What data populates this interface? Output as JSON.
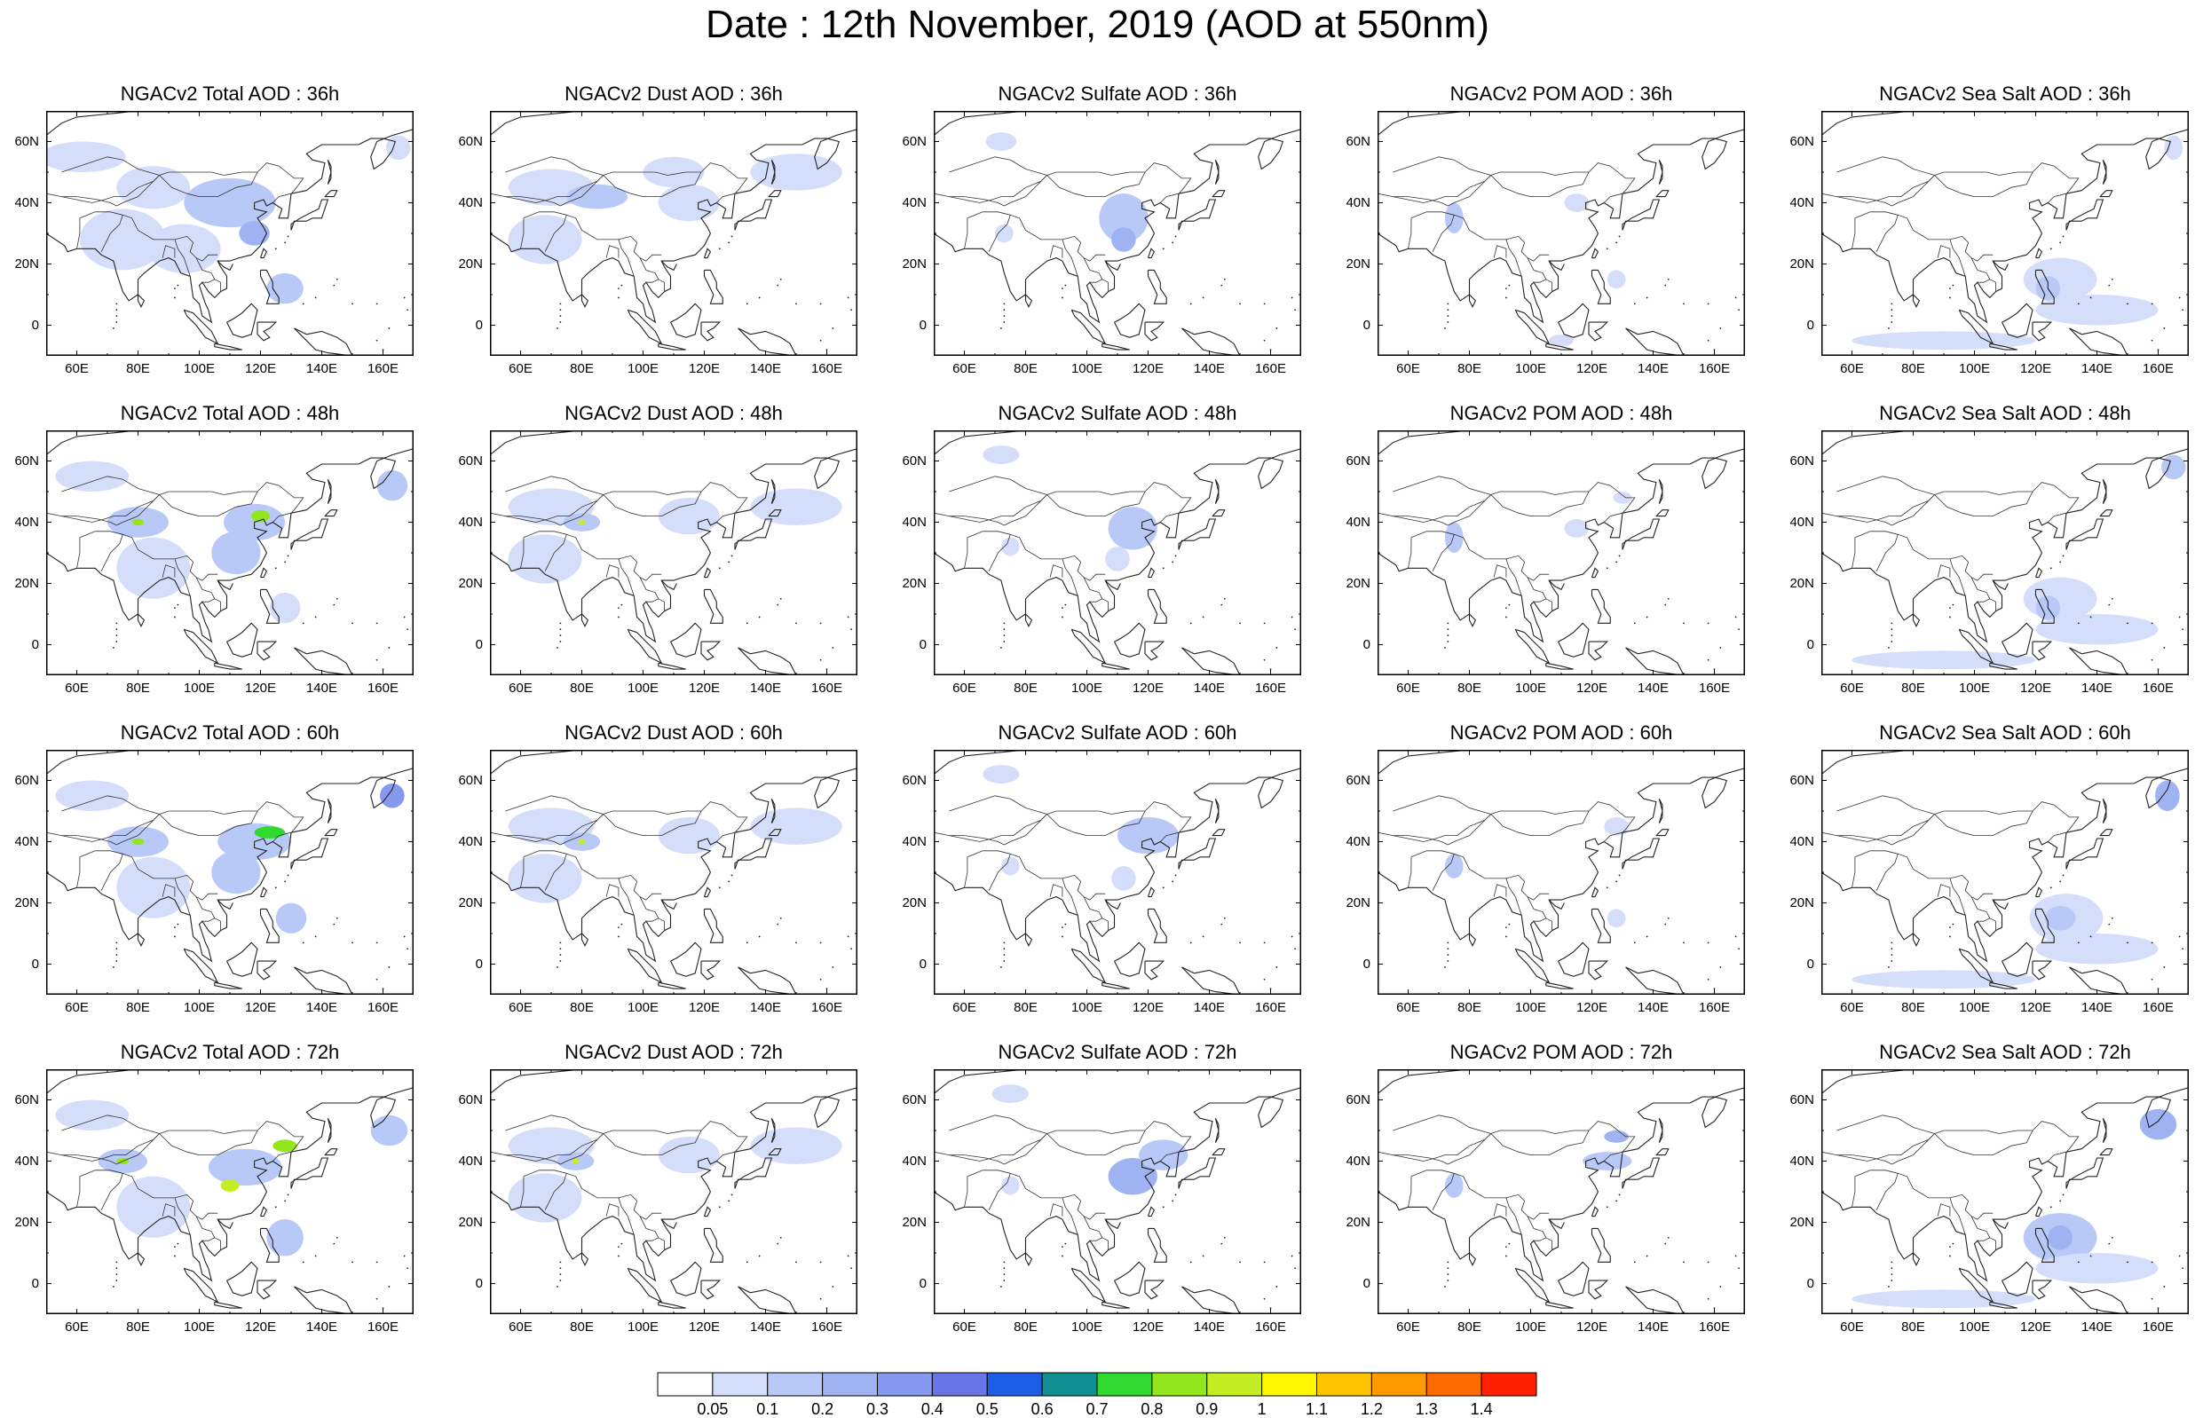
{
  "title": "Date : 12th November, 2019 (AOD at 550nm)",
  "panel_titles": [
    [
      "NGACv2 Total AOD : 36h",
      "NGACv2 Dust AOD : 36h",
      "NGACv2 Sulfate AOD : 36h",
      "NGACv2 POM AOD : 36h",
      "NGACv2 Sea Salt AOD : 36h"
    ],
    [
      "NGACv2 Total AOD : 48h",
      "NGACv2 Dust AOD : 48h",
      "NGACv2 Sulfate AOD : 48h",
      "NGACv2 POM AOD : 48h",
      "NGACv2 Sea Salt AOD : 48h"
    ],
    [
      "NGACv2 Total AOD : 60h",
      "NGACv2 Dust AOD : 60h",
      "NGACv2 Sulfate AOD : 60h",
      "NGACv2 POM AOD : 60h",
      "NGACv2 Sea Salt AOD : 60h"
    ],
    [
      "NGACv2 Total AOD : 72h",
      "NGACv2 Dust AOD : 72h",
      "NGACv2 Sulfate AOD : 72h",
      "NGACv2 POM AOD : 72h",
      "NGACv2 Sea Salt  AOD : 72h"
    ]
  ],
  "map_extent": {
    "lon": [
      50,
      170
    ],
    "lat": [
      -10,
      70
    ]
  },
  "lon_ticks": [
    "60E",
    "80E",
    "100E",
    "120E",
    "140E",
    "160E"
  ],
  "lon_values": [
    60,
    80,
    100,
    120,
    140,
    160
  ],
  "lat_ticks": [
    "60N",
    "40N",
    "20N",
    "0"
  ],
  "lat_values": [
    60,
    40,
    20,
    0
  ],
  "colorbar": {
    "labels": [
      "0.05",
      "0.1",
      "0.2",
      "0.3",
      "0.4",
      "0.5",
      "0.6",
      "0.7",
      "0.8",
      "0.9",
      "1",
      "1.1",
      "1.2",
      "1.3",
      "1.4"
    ],
    "colors": [
      "#ffffff",
      "#d4defb",
      "#b8c8f7",
      "#9fb3f3",
      "#8599ee",
      "#6a76e8",
      "#1e5ee6",
      "#0f8f8f",
      "#2fd92f",
      "#93e51c",
      "#c4ee22",
      "#fff700",
      "#ffc400",
      "#ff9b00",
      "#ff6a00",
      "#ff2000"
    ]
  },
  "panel_blobs": [
    [
      [
        [
          62,
          55,
          14,
          5,
          1
        ],
        [
          85,
          45,
          12,
          7,
          1
        ],
        [
          110,
          40,
          15,
          8,
          2
        ],
        [
          118,
          30,
          5,
          4,
          3
        ],
        [
          75,
          28,
          14,
          10,
          1
        ],
        [
          128,
          12,
          6,
          5,
          2
        ],
        [
          95,
          25,
          12,
          8,
          1
        ],
        [
          165,
          58,
          4,
          4,
          1
        ]
      ],
      [
        [
          70,
          45,
          14,
          6,
          1
        ],
        [
          85,
          42,
          10,
          4,
          2
        ],
        [
          115,
          40,
          10,
          6,
          1
        ],
        [
          68,
          28,
          12,
          8,
          1
        ],
        [
          150,
          50,
          15,
          6,
          1
        ],
        [
          110,
          50,
          10,
          5,
          1
        ]
      ],
      [
        [
          72,
          60,
          5,
          3,
          1
        ],
        [
          112,
          35,
          8,
          8,
          2
        ],
        [
          112,
          28,
          4,
          4,
          3
        ],
        [
          73,
          30,
          3,
          3,
          1
        ]
      ],
      [
        [
          75,
          35,
          3,
          5,
          2
        ],
        [
          115,
          40,
          4,
          3,
          1
        ],
        [
          128,
          15,
          3,
          3,
          1
        ],
        [
          110,
          -5,
          4,
          2,
          1
        ]
      ],
      [
        [
          128,
          15,
          12,
          7,
          1
        ],
        [
          124,
          12,
          4,
          4,
          2
        ],
        [
          140,
          5,
          20,
          5,
          1
        ],
        [
          90,
          -5,
          30,
          3,
          1
        ],
        [
          165,
          58,
          3,
          4,
          1
        ]
      ]
    ],
    [
      [
        [
          65,
          55,
          12,
          5,
          1
        ],
        [
          80,
          40,
          10,
          5,
          2
        ],
        [
          80,
          40,
          2,
          1,
          9
        ],
        [
          118,
          40,
          10,
          6,
          2
        ],
        [
          120,
          42,
          3,
          2,
          9
        ],
        [
          112,
          30,
          8,
          7,
          2
        ],
        [
          128,
          12,
          5,
          5,
          1
        ],
        [
          85,
          25,
          12,
          10,
          1
        ],
        [
          163,
          52,
          5,
          5,
          2
        ]
      ],
      [
        [
          70,
          45,
          14,
          6,
          1
        ],
        [
          80,
          40,
          6,
          3,
          2
        ],
        [
          80,
          40,
          1,
          1,
          10
        ],
        [
          115,
          42,
          10,
          6,
          1
        ],
        [
          68,
          28,
          12,
          8,
          1
        ],
        [
          150,
          45,
          15,
          6,
          1
        ]
      ],
      [
        [
          72,
          62,
          6,
          3,
          1
        ],
        [
          115,
          38,
          8,
          7,
          2
        ],
        [
          110,
          28,
          4,
          4,
          1
        ],
        [
          75,
          32,
          3,
          3,
          1
        ]
      ],
      [
        [
          75,
          35,
          3,
          5,
          2
        ],
        [
          115,
          38,
          4,
          3,
          1
        ],
        [
          130,
          48,
          3,
          2,
          1
        ]
      ],
      [
        [
          128,
          15,
          12,
          7,
          1
        ],
        [
          124,
          12,
          4,
          4,
          2
        ],
        [
          140,
          5,
          20,
          5,
          1
        ],
        [
          90,
          -5,
          30,
          3,
          1
        ],
        [
          165,
          58,
          4,
          4,
          2
        ]
      ]
    ],
    [
      [
        [
          65,
          55,
          12,
          5,
          1
        ],
        [
          80,
          40,
          10,
          5,
          2
        ],
        [
          80,
          40,
          2,
          1,
          9
        ],
        [
          118,
          40,
          12,
          6,
          2
        ],
        [
          123,
          43,
          5,
          2,
          8
        ],
        [
          112,
          30,
          8,
          7,
          2
        ],
        [
          130,
          15,
          5,
          5,
          2
        ],
        [
          85,
          25,
          12,
          10,
          1
        ],
        [
          163,
          55,
          4,
          4,
          4
        ]
      ],
      [
        [
          70,
          45,
          14,
          6,
          1
        ],
        [
          80,
          40,
          6,
          3,
          2
        ],
        [
          80,
          40,
          1,
          1,
          10
        ],
        [
          115,
          42,
          10,
          6,
          1
        ],
        [
          68,
          28,
          12,
          8,
          1
        ],
        [
          150,
          45,
          15,
          6,
          1
        ]
      ],
      [
        [
          72,
          62,
          6,
          3,
          1
        ],
        [
          120,
          42,
          10,
          6,
          2
        ],
        [
          112,
          28,
          4,
          4,
          1
        ],
        [
          75,
          32,
          3,
          3,
          1
        ]
      ],
      [
        [
          75,
          32,
          3,
          4,
          2
        ],
        [
          128,
          45,
          4,
          3,
          1
        ],
        [
          128,
          15,
          3,
          3,
          1
        ]
      ],
      [
        [
          130,
          15,
          12,
          8,
          1
        ],
        [
          128,
          15,
          5,
          4,
          2
        ],
        [
          140,
          5,
          20,
          5,
          1
        ],
        [
          90,
          -5,
          30,
          3,
          1
        ],
        [
          163,
          55,
          4,
          5,
          3
        ]
      ]
    ],
    [
      [
        [
          65,
          55,
          12,
          5,
          1
        ],
        [
          75,
          40,
          8,
          4,
          2
        ],
        [
          75,
          40,
          2,
          1,
          9
        ],
        [
          115,
          38,
          12,
          6,
          2
        ],
        [
          110,
          32,
          3,
          2,
          10
        ],
        [
          128,
          45,
          4,
          2,
          9
        ],
        [
          128,
          15,
          6,
          6,
          2
        ],
        [
          85,
          25,
          12,
          10,
          1
        ],
        [
          162,
          50,
          6,
          5,
          2
        ]
      ],
      [
        [
          70,
          45,
          14,
          6,
          1
        ],
        [
          78,
          40,
          6,
          3,
          2
        ],
        [
          78,
          40,
          1,
          1,
          10
        ],
        [
          115,
          42,
          10,
          6,
          1
        ],
        [
          68,
          28,
          12,
          8,
          1
        ],
        [
          150,
          45,
          15,
          6,
          1
        ]
      ],
      [
        [
          75,
          62,
          6,
          3,
          1
        ],
        [
          115,
          35,
          8,
          6,
          3
        ],
        [
          125,
          42,
          8,
          5,
          2
        ],
        [
          75,
          32,
          3,
          3,
          1
        ]
      ],
      [
        [
          75,
          32,
          3,
          4,
          2
        ],
        [
          125,
          40,
          8,
          3,
          2
        ],
        [
          128,
          48,
          4,
          2,
          3
        ]
      ],
      [
        [
          128,
          15,
          12,
          8,
          2
        ],
        [
          128,
          15,
          4,
          4,
          3
        ],
        [
          140,
          5,
          20,
          5,
          1
        ],
        [
          90,
          -5,
          30,
          3,
          1
        ],
        [
          160,
          52,
          6,
          5,
          3
        ]
      ]
    ]
  ]
}
